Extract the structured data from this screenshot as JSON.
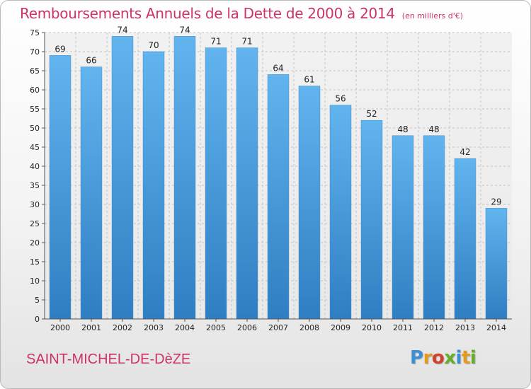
{
  "chart_data": {
    "type": "bar",
    "title": "Remboursements Annuels de la Dette de 2000 à 2014",
    "unit": "(en milliers d'€)",
    "categories": [
      "2000",
      "2001",
      "2002",
      "2003",
      "2004",
      "2005",
      "2006",
      "2007",
      "2008",
      "2009",
      "2010",
      "2011",
      "2012",
      "2013",
      "2014"
    ],
    "values": [
      69,
      66,
      74,
      70,
      74,
      71,
      71,
      64,
      61,
      56,
      52,
      48,
      48,
      42,
      29
    ],
    "ylim": [
      0,
      75
    ],
    "yticks": [
      0,
      5,
      10,
      15,
      20,
      25,
      30,
      35,
      40,
      45,
      50,
      55,
      60,
      65,
      70,
      75
    ],
    "grid": true,
    "bar_color": "#4f9fde",
    "bar_color_light": "#62b4ef",
    "bar_color_dark": "#2f7ec2"
  },
  "footer": {
    "place": "SAINT-MICHEL-DE-DèZE",
    "logo_letters": [
      {
        "ch": "P",
        "color": "#3c8fd4"
      },
      {
        "ch": "r",
        "color": "#e39a1f"
      },
      {
        "ch": "o",
        "color": "#d2412d"
      },
      {
        "ch": "x",
        "color": "#65ad2d"
      },
      {
        "ch": "i",
        "color": "#3c8fd4"
      },
      {
        "ch": "t",
        "color": "#e39a1f"
      },
      {
        "ch": "i",
        "color": "#65ad2d"
      }
    ]
  }
}
